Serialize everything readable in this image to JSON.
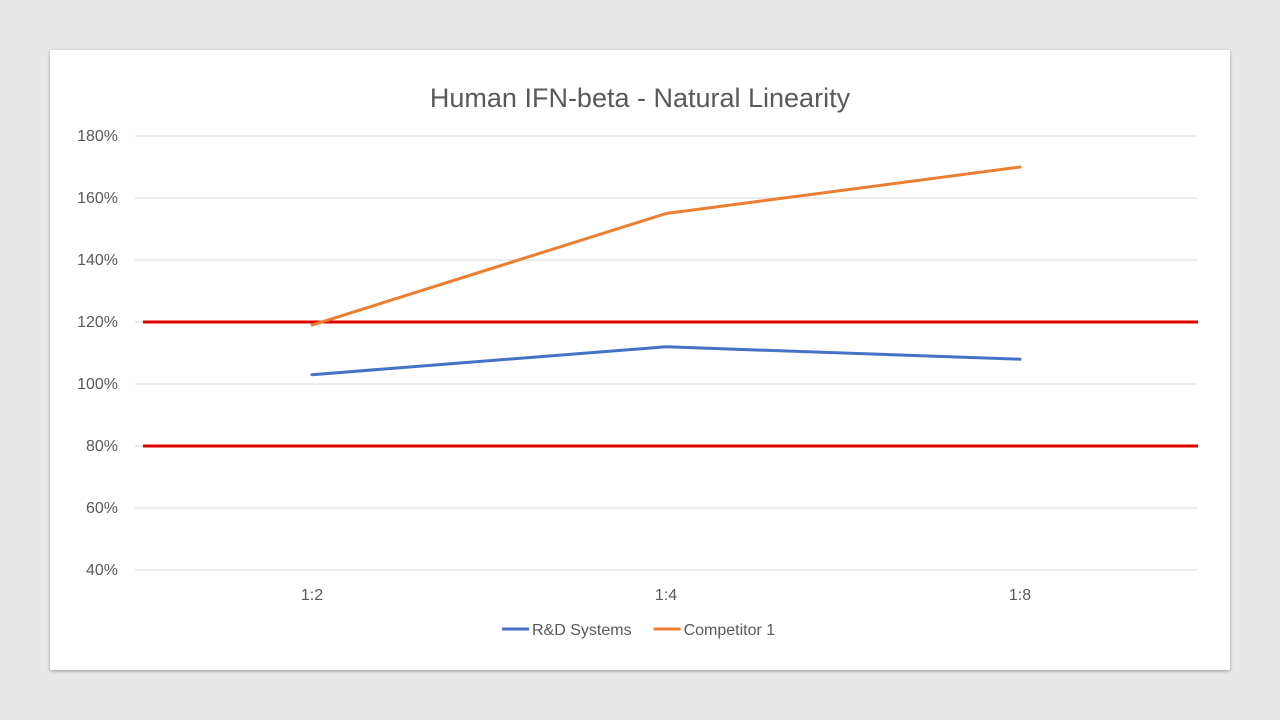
{
  "chart_data": {
    "type": "line",
    "title": "Human IFN-beta - Natural Linearity",
    "xlabel": "",
    "ylabel": "",
    "categories": [
      "1:2",
      "1:4",
      "1:8"
    ],
    "y_ticks": [
      "40%",
      "60%",
      "80%",
      "100%",
      "120%",
      "140%",
      "160%",
      "180%"
    ],
    "ylim": [
      40,
      180
    ],
    "y_unit": "%",
    "grid": true,
    "legend_position": "bottom",
    "series": [
      {
        "name": "R&D Systems",
        "color": "#4472c4",
        "values": [
          103,
          112,
          108
        ]
      },
      {
        "name": "Competitor 1",
        "color": "#ed7d31",
        "values": [
          119,
          155,
          170
        ]
      }
    ],
    "reference_lines": [
      {
        "value": 120,
        "color": "#e00000"
      },
      {
        "value": 80,
        "color": "#e00000"
      }
    ]
  }
}
